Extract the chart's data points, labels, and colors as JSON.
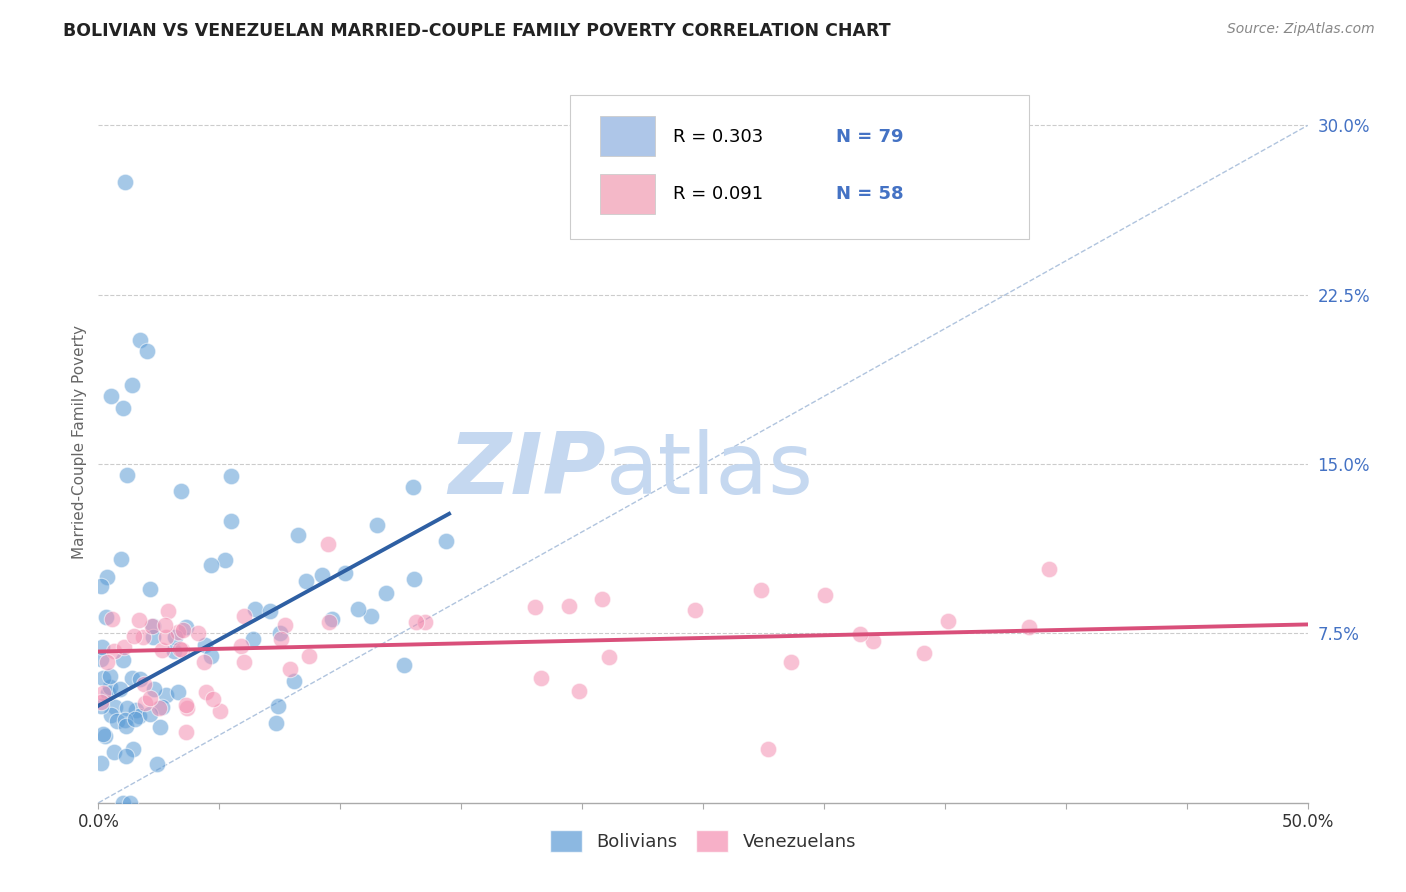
{
  "title": "BOLIVIAN VS VENEZUELAN MARRIED-COUPLE FAMILY POVERTY CORRELATION CHART",
  "source": "Source: ZipAtlas.com",
  "ylabel": "Married-Couple Family Poverty",
  "xlim": [
    0.0,
    0.5
  ],
  "ylim": [
    0.0,
    0.32
  ],
  "xticks": [
    0.0,
    0.05,
    0.1,
    0.15,
    0.2,
    0.25,
    0.3,
    0.35,
    0.4,
    0.45,
    0.5
  ],
  "ytick_positions": [
    0.0,
    0.075,
    0.15,
    0.225,
    0.3
  ],
  "bolivians_color": "#5b9bd5",
  "venezuelans_color": "#f48fb1",
  "trendline_bolivians_color": "#2e5fa3",
  "trendline_venezuelans_color": "#d94f7a",
  "legend_bol_color": "#aec6e8",
  "legend_ven_color": "#f4b8c8",
  "watermark_zip_color": "#c5d8f0",
  "watermark_atlas_color": "#c5d8f0",
  "background_color": "#ffffff",
  "grid_color": "#cccccc",
  "R_bolivians": 0.303,
  "N_bolivians": 79,
  "R_venezuelans": 0.091,
  "N_venezuelans": 58,
  "trendline_bol_x0": 0.0,
  "trendline_bol_y0": 0.043,
  "trendline_bol_x1": 0.145,
  "trendline_bol_y1": 0.128,
  "trendline_ven_x0": 0.0,
  "trendline_ven_y0": 0.067,
  "trendline_ven_x1": 0.5,
  "trendline_ven_y1": 0.079
}
